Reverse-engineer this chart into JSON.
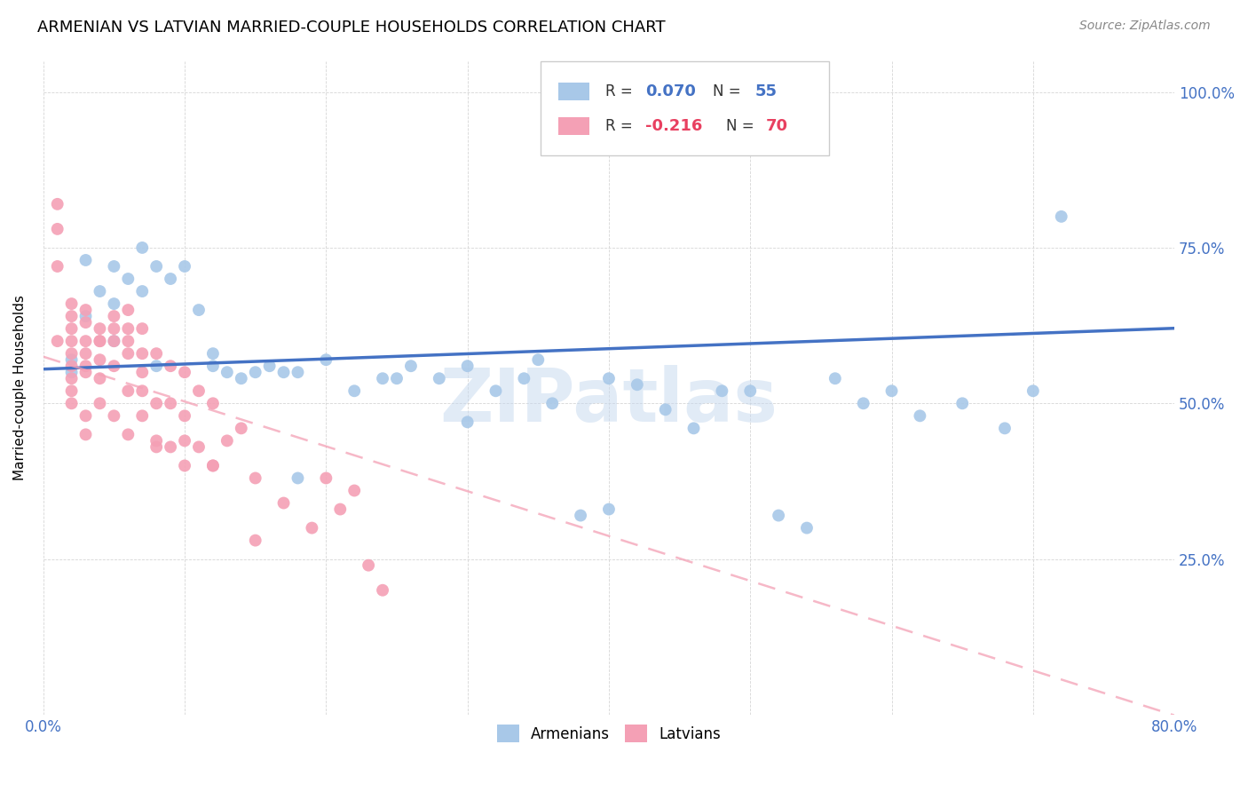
{
  "title": "ARMENIAN VS LATVIAN MARRIED-COUPLE HOUSEHOLDS CORRELATION CHART",
  "source": "Source: ZipAtlas.com",
  "ylabel": "Married-couple Households",
  "xmin": 0.0,
  "xmax": 0.8,
  "ymin": 0.0,
  "ymax": 1.05,
  "ytick_positions": [
    0.0,
    0.25,
    0.5,
    0.75,
    1.0
  ],
  "ytick_labels": [
    "",
    "25.0%",
    "50.0%",
    "75.0%",
    "100.0%"
  ],
  "xtick_positions": [
    0.0,
    0.1,
    0.2,
    0.3,
    0.4,
    0.5,
    0.6,
    0.7,
    0.8
  ],
  "xtick_labels": [
    "0.0%",
    "",
    "",
    "",
    "",
    "",
    "",
    "",
    "80.0%"
  ],
  "watermark": "ZIPatlas",
  "legend_r_arm": "R = 0.070",
  "legend_n_arm": "N = 55",
  "legend_r_lat": "R = -0.216",
  "legend_n_lat": "N = 70",
  "blue_dot_color": "#A8C8E8",
  "pink_dot_color": "#F4A0B5",
  "blue_line_color": "#4472C4",
  "pink_line_color": "#F4A0B5",
  "blue_text_color": "#4472C4",
  "pink_text_color": "#E84060",
  "axis_color": "#4472C4",
  "grid_color": "#CCCCCC",
  "armenian_x": [
    0.35,
    0.07,
    0.05,
    0.02,
    0.02,
    0.03,
    0.04,
    0.05,
    0.06,
    0.07,
    0.08,
    0.09,
    0.1,
    0.11,
    0.12,
    0.13,
    0.14,
    0.15,
    0.16,
    0.17,
    0.18,
    0.2,
    0.22,
    0.24,
    0.26,
    0.28,
    0.3,
    0.32,
    0.34,
    0.36,
    0.38,
    0.4,
    0.42,
    0.44,
    0.46,
    0.48,
    0.5,
    0.52,
    0.54,
    0.56,
    0.58,
    0.6,
    0.62,
    0.65,
    0.68,
    0.7,
    0.03,
    0.05,
    0.08,
    0.12,
    0.18,
    0.25,
    0.3,
    0.4,
    0.72
  ],
  "armenian_y": [
    0.57,
    0.68,
    0.72,
    0.57,
    0.55,
    0.64,
    0.68,
    0.66,
    0.7,
    0.75,
    0.72,
    0.7,
    0.72,
    0.65,
    0.58,
    0.55,
    0.54,
    0.55,
    0.56,
    0.55,
    0.38,
    0.57,
    0.52,
    0.54,
    0.56,
    0.54,
    0.56,
    0.52,
    0.54,
    0.5,
    0.32,
    0.33,
    0.53,
    0.49,
    0.46,
    0.52,
    0.52,
    0.32,
    0.3,
    0.54,
    0.5,
    0.52,
    0.48,
    0.5,
    0.46,
    0.52,
    0.73,
    0.6,
    0.56,
    0.56,
    0.55,
    0.54,
    0.47,
    0.54,
    0.8
  ],
  "latvian_x": [
    0.01,
    0.01,
    0.01,
    0.02,
    0.02,
    0.02,
    0.02,
    0.02,
    0.02,
    0.02,
    0.02,
    0.03,
    0.03,
    0.03,
    0.03,
    0.03,
    0.03,
    0.03,
    0.04,
    0.04,
    0.04,
    0.04,
    0.04,
    0.05,
    0.05,
    0.05,
    0.05,
    0.06,
    0.06,
    0.06,
    0.06,
    0.06,
    0.07,
    0.07,
    0.07,
    0.07,
    0.08,
    0.08,
    0.08,
    0.09,
    0.09,
    0.09,
    0.1,
    0.1,
    0.1,
    0.11,
    0.11,
    0.12,
    0.12,
    0.13,
    0.14,
    0.15,
    0.17,
    0.19,
    0.2,
    0.21,
    0.22,
    0.23,
    0.24,
    0.01,
    0.02,
    0.03,
    0.04,
    0.05,
    0.06,
    0.07,
    0.08,
    0.1,
    0.12,
    0.15
  ],
  "latvian_y": [
    0.82,
    0.78,
    0.6,
    0.64,
    0.62,
    0.6,
    0.58,
    0.56,
    0.54,
    0.52,
    0.5,
    0.65,
    0.63,
    0.6,
    0.58,
    0.56,
    0.48,
    0.45,
    0.62,
    0.6,
    0.57,
    0.54,
    0.5,
    0.64,
    0.6,
    0.56,
    0.48,
    0.65,
    0.6,
    0.58,
    0.52,
    0.45,
    0.62,
    0.58,
    0.52,
    0.48,
    0.58,
    0.5,
    0.43,
    0.56,
    0.5,
    0.43,
    0.55,
    0.48,
    0.4,
    0.52,
    0.43,
    0.5,
    0.4,
    0.44,
    0.46,
    0.38,
    0.34,
    0.3,
    0.38,
    0.33,
    0.36,
    0.24,
    0.2,
    0.72,
    0.66,
    0.55,
    0.6,
    0.62,
    0.62,
    0.55,
    0.44,
    0.44,
    0.4,
    0.28
  ]
}
